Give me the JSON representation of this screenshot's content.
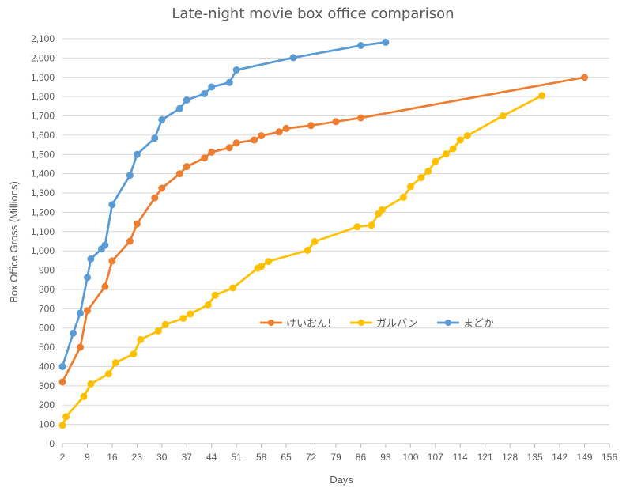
{
  "chart_data": {
    "type": "line",
    "title": "Late-night movie box office comparison",
    "xlabel": "Days",
    "ylabel": "Box Office Gross (Millions)",
    "xlim": [
      2,
      156
    ],
    "ylim": [
      0,
      2100
    ],
    "x_ticks": [
      "2",
      "9",
      "16",
      "23",
      "30",
      "37",
      "44",
      "51",
      "58",
      "65",
      "72",
      "79",
      "86",
      "93",
      "100",
      "107",
      "114",
      "121",
      "128",
      "135",
      "142",
      "149",
      "156"
    ],
    "y_ticks": [
      "0",
      "100",
      "200",
      "300",
      "400",
      "500",
      "600",
      "700",
      "800",
      "900",
      "1,000",
      "1,100",
      "1,200",
      "1,300",
      "1,400",
      "1,500",
      "1,600",
      "1,700",
      "1,800",
      "1,900",
      "2,000",
      "2,100"
    ],
    "grid": "horizontal",
    "legend_position": "center-right",
    "series": [
      {
        "name": "けいおん!",
        "color": "#ED7D31",
        "points": [
          [
            2,
            320
          ],
          [
            7,
            500
          ],
          [
            9,
            690
          ],
          [
            14,
            815
          ],
          [
            16,
            948
          ],
          [
            21,
            1050
          ],
          [
            23,
            1140
          ],
          [
            28,
            1275
          ],
          [
            30,
            1325
          ],
          [
            35,
            1400
          ],
          [
            37,
            1437
          ],
          [
            42,
            1482
          ],
          [
            44,
            1512
          ],
          [
            49,
            1535
          ],
          [
            51,
            1560
          ],
          [
            56,
            1575
          ],
          [
            58,
            1597
          ],
          [
            63,
            1617
          ],
          [
            65,
            1635
          ],
          [
            72,
            1650
          ],
          [
            79,
            1670
          ],
          [
            86,
            1690
          ],
          [
            149,
            1900
          ]
        ]
      },
      {
        "name": "ガルパン",
        "color": "#FFC000",
        "points": [
          [
            2,
            95
          ],
          [
            3,
            140
          ],
          [
            8,
            245
          ],
          [
            10,
            310
          ],
          [
            15,
            362
          ],
          [
            17,
            420
          ],
          [
            22,
            465
          ],
          [
            24,
            540
          ],
          [
            29,
            585
          ],
          [
            31,
            618
          ],
          [
            36,
            650
          ],
          [
            38,
            673
          ],
          [
            43,
            720
          ],
          [
            45,
            770
          ],
          [
            50,
            808
          ],
          [
            57,
            910
          ],
          [
            58,
            920
          ],
          [
            60,
            945
          ],
          [
            71,
            1003
          ],
          [
            73,
            1048
          ],
          [
            85,
            1125
          ],
          [
            89,
            1133
          ],
          [
            91,
            1193
          ],
          [
            92,
            1213
          ],
          [
            98,
            1278
          ],
          [
            100,
            1333
          ],
          [
            103,
            1380
          ],
          [
            105,
            1413
          ],
          [
            107,
            1463
          ],
          [
            110,
            1503
          ],
          [
            112,
            1530
          ],
          [
            114,
            1575
          ],
          [
            116,
            1597
          ],
          [
            126,
            1700
          ],
          [
            137,
            1805
          ]
        ]
      },
      {
        "name": "まどか",
        "color": "#5B9BD5",
        "points": [
          [
            2,
            400
          ],
          [
            5,
            573
          ],
          [
            7,
            677
          ],
          [
            9,
            862
          ],
          [
            10,
            958
          ],
          [
            13,
            1010
          ],
          [
            14,
            1030
          ],
          [
            16,
            1240
          ],
          [
            21,
            1392
          ],
          [
            23,
            1500
          ],
          [
            28,
            1585
          ],
          [
            30,
            1680
          ],
          [
            35,
            1738
          ],
          [
            37,
            1782
          ],
          [
            42,
            1815
          ],
          [
            44,
            1850
          ],
          [
            49,
            1873
          ],
          [
            51,
            1938
          ],
          [
            67,
            2002
          ],
          [
            86,
            2065
          ],
          [
            93,
            2082
          ]
        ]
      }
    ]
  }
}
